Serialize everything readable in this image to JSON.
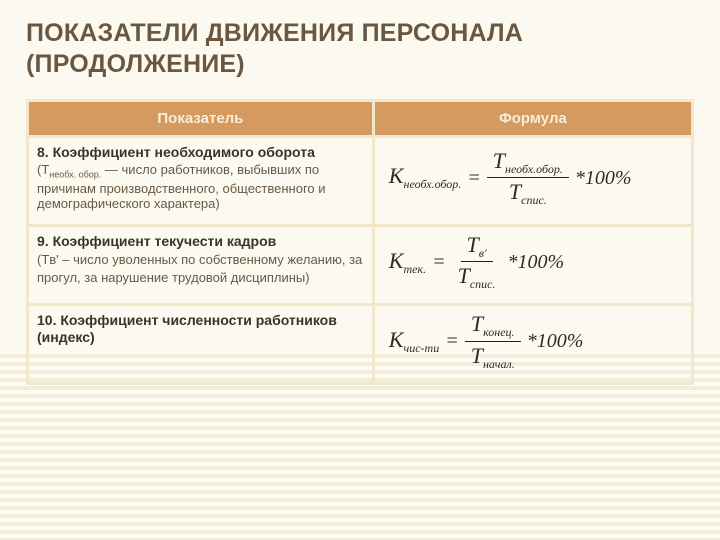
{
  "title_line1": "ПОКАЗАТЕЛИ ДВИЖЕНИЯ ПЕРСОНАЛА",
  "title_line2": "(ПРОДОЛЖЕНИЕ)",
  "headers": {
    "left": "Показатель",
    "right": "Формула"
  },
  "rows": [
    {
      "num": "8.",
      "title": "Коэффициент необходимого оборота",
      "desc_prefix": "(T",
      "desc_sub": "необх. обор.",
      "desc_rest": "— число работников, выбывших по причинам производственного, общественного и демографического характера)",
      "formula": {
        "lhs_var": "K",
        "lhs_sub": "необх.обор.",
        "num_var": "T",
        "num_sub": "необх.обор.",
        "den_var": "T",
        "den_sub": "спис.",
        "tail": "*100%"
      }
    },
    {
      "num": "9.",
      "title": "Коэффициент текучести кадров",
      "desc_prefix": "(Tв'",
      "desc_sub": "",
      "desc_rest": " – число уволенных по собственному желанию, за прогул, за нарушение трудовой дисциплины)",
      "formula": {
        "lhs_var": "K",
        "lhs_sub": "тек.",
        "num_var": "T",
        "num_sub": "в'",
        "den_var": "T",
        "den_sub": "спис.",
        "tail": "*100%"
      }
    },
    {
      "num": "10.",
      "title": "Коэффициент численности работников (индекс)",
      "desc_prefix": "",
      "desc_sub": "",
      "desc_rest": "",
      "formula": {
        "lhs_var": "K",
        "lhs_sub": "чис-ти",
        "num_var": "T",
        "num_sub": "конец.",
        "den_var": "T",
        "den_sub": "начал.",
        "tail": "*100%"
      }
    }
  ],
  "colors": {
    "page_bg": "#fcfaf0",
    "header_bg": "#d49a5f",
    "header_text": "#f7edd8",
    "cell_border": "#f2e6cb",
    "body_text": "#6a5843",
    "formula_text": "#2b2b2b"
  }
}
